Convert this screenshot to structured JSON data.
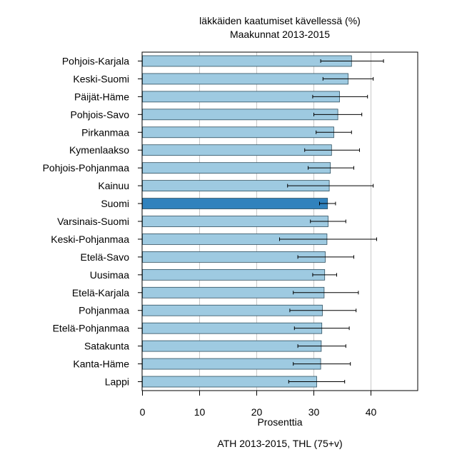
{
  "chart_data": {
    "type": "bar",
    "orientation": "horizontal",
    "title": "läkkäiden kaatumiset kävellessä (%)",
    "subtitle": "Maakunnat 2013-2015",
    "xlabel": "Prosenttia",
    "ylabel": "",
    "footer": "ATH 2013-2015, THL (75+v)",
    "xlim": [
      0,
      48
    ],
    "xticks": [
      0,
      10,
      20,
      30,
      40
    ],
    "grid": "vertical",
    "legend": "none",
    "categories": [
      "Pohjois-Karjala",
      "Keski-Suomi",
      "Päijät-Häme",
      "Pohjois-Savo",
      "Pirkanmaa",
      "Kymenlaakso",
      "Pohjois-Pohjanmaa",
      "Kainuu",
      "Suomi",
      "Varsinais-Suomi",
      "Keski-Pohjanmaa",
      "Etelä-Savo",
      "Uusimaa",
      "Etelä-Karjala",
      "Pohjanmaa",
      "Etelä-Pohjanmaa",
      "Satakunta",
      "Kanta-Häme",
      "Lappi"
    ],
    "values": [
      36.6,
      36.0,
      34.5,
      34.2,
      33.5,
      33.1,
      32.9,
      32.7,
      32.4,
      32.5,
      32.3,
      32.0,
      31.9,
      31.8,
      31.5,
      31.4,
      31.3,
      31.2,
      30.5
    ],
    "error_low": [
      31.2,
      31.6,
      29.8,
      30.0,
      30.4,
      28.4,
      29.0,
      25.4,
      31.0,
      29.4,
      24.0,
      27.2,
      29.8,
      26.4,
      25.8,
      26.6,
      27.2,
      26.4,
      25.6
    ],
    "error_high": [
      42.2,
      40.4,
      39.4,
      38.4,
      36.6,
      38.0,
      37.0,
      40.4,
      33.8,
      35.6,
      41.0,
      37.0,
      34.0,
      37.8,
      37.4,
      36.2,
      35.6,
      36.4,
      35.4
    ],
    "highlight": "Suomi",
    "colors": {
      "bar": "#9ecae1",
      "highlight": "#3182bd",
      "bar_stroke": "#2f4f5f",
      "grid": "#c8c8c8"
    }
  }
}
